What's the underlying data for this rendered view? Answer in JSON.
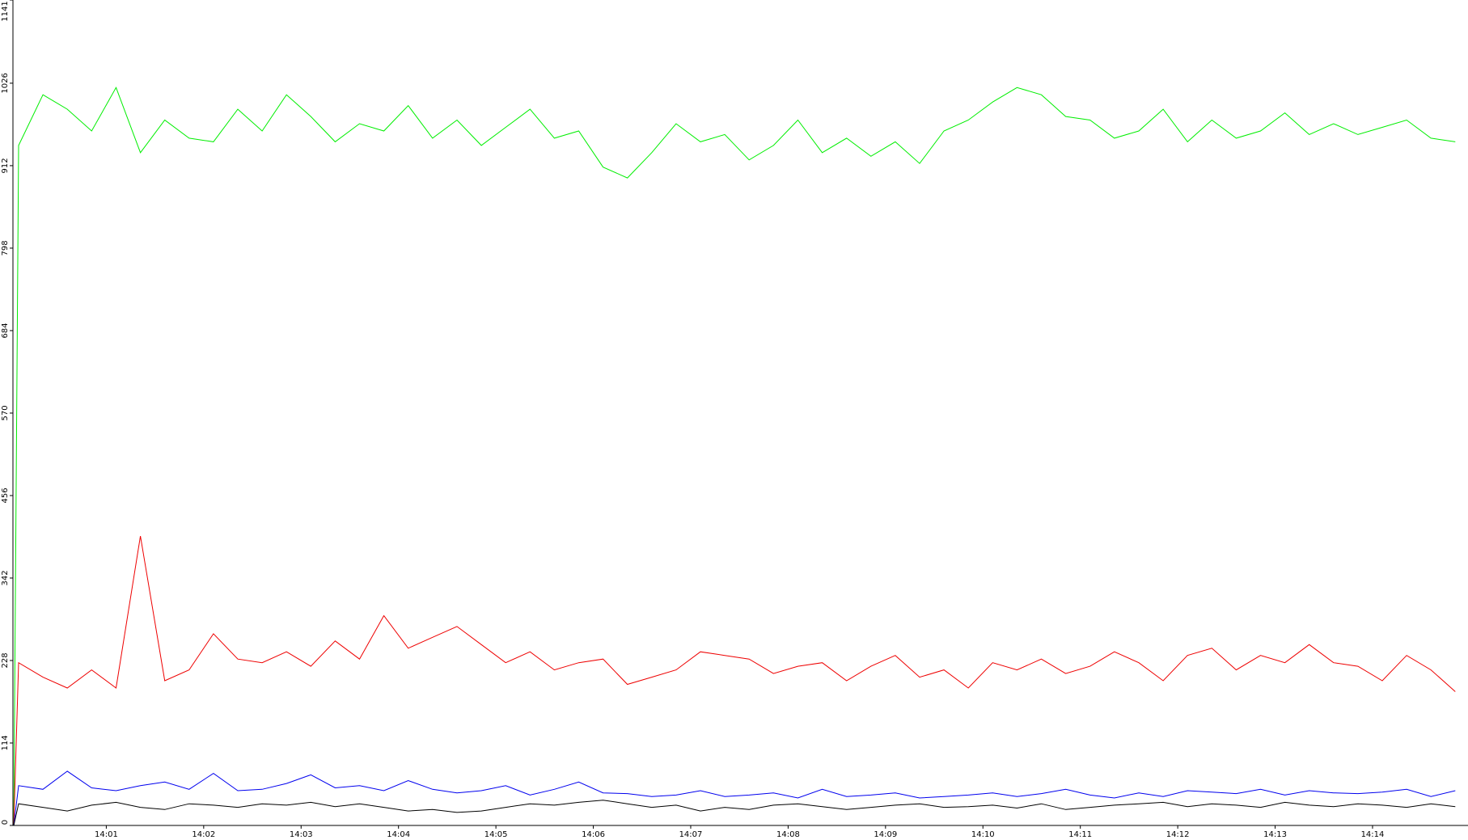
{
  "chart_data": {
    "type": "line",
    "x": [
      0.05,
      0.1,
      0.35,
      0.6,
      0.85,
      1.1,
      1.35,
      1.6,
      1.85,
      2.1,
      2.35,
      2.6,
      2.85,
      3.1,
      3.35,
      3.6,
      3.85,
      4.1,
      4.35,
      4.6,
      4.85,
      5.1,
      5.35,
      5.6,
      5.85,
      6.1,
      6.35,
      6.6,
      6.85,
      7.1,
      7.35,
      7.6,
      7.85,
      8.1,
      8.35,
      8.6,
      8.85,
      9.1,
      9.35,
      9.6,
      9.85,
      10.1,
      10.35,
      10.6,
      10.85,
      11.1,
      11.35,
      11.6,
      11.85,
      12.1,
      12.35,
      12.6,
      12.85,
      13.1,
      13.35,
      13.6,
      13.85,
      14.1,
      14.35,
      14.6,
      14.85
    ],
    "series": [
      {
        "color": "#00ee00",
        "values": [
          0,
          940,
          1010,
          990,
          960,
          1020,
          930,
          975,
          950,
          945,
          990,
          960,
          1010,
          980,
          945,
          970,
          960,
          995,
          950,
          975,
          940,
          965,
          990,
          950,
          960,
          910,
          895,
          930,
          970,
          945,
          955,
          920,
          940,
          975,
          930,
          950,
          925,
          945,
          915,
          960,
          975,
          1000,
          1020,
          1010,
          980,
          975,
          950,
          960,
          990,
          945,
          975,
          950,
          960,
          985,
          955,
          970,
          955,
          965,
          975,
          950,
          945
        ]
      },
      {
        "color": "#ee0000",
        "values": [
          0,
          225,
          205,
          190,
          215,
          190,
          400,
          200,
          215,
          265,
          230,
          225,
          240,
          220,
          255,
          230,
          290,
          245,
          260,
          275,
          250,
          225,
          240,
          215,
          225,
          230,
          195,
          205,
          215,
          240,
          235,
          230,
          210,
          220,
          225,
          200,
          220,
          235,
          205,
          215,
          190,
          225,
          215,
          230,
          210,
          220,
          240,
          225,
          200,
          235,
          245,
          215,
          235,
          225,
          250,
          225,
          220,
          200,
          235,
          215,
          185
        ]
      },
      {
        "color": "#0000ee",
        "values": [
          0,
          55,
          50,
          75,
          52,
          48,
          55,
          60,
          50,
          72,
          48,
          50,
          58,
          70,
          52,
          55,
          48,
          62,
          50,
          45,
          48,
          55,
          42,
          50,
          60,
          45,
          44,
          40,
          42,
          48,
          40,
          42,
          45,
          38,
          50,
          40,
          42,
          45,
          38,
          40,
          42,
          45,
          40,
          44,
          50,
          42,
          38,
          45,
          40,
          48,
          46,
          44,
          50,
          42,
          48,
          45,
          44,
          46,
          50,
          40,
          48
        ]
      },
      {
        "color": "#000000",
        "values": [
          0,
          30,
          25,
          20,
          28,
          32,
          25,
          22,
          30,
          28,
          25,
          30,
          28,
          32,
          26,
          30,
          25,
          20,
          22,
          18,
          20,
          25,
          30,
          28,
          32,
          35,
          30,
          25,
          28,
          20,
          25,
          22,
          28,
          30,
          26,
          22,
          25,
          28,
          30,
          25,
          26,
          28,
          24,
          30,
          22,
          25,
          28,
          30,
          32,
          26,
          30,
          28,
          25,
          32,
          28,
          26,
          30,
          28,
          25,
          30,
          26
        ]
      }
    ],
    "xlim": [
      0.05,
      14.98
    ],
    "xticks": [
      {
        "value": 1,
        "label": "14:01"
      },
      {
        "value": 2,
        "label": "14:02"
      },
      {
        "value": 3,
        "label": "14:03"
      },
      {
        "value": 4,
        "label": "14:04"
      },
      {
        "value": 5,
        "label": "14:05"
      },
      {
        "value": 6,
        "label": "14:06"
      },
      {
        "value": 7,
        "label": "14:07"
      },
      {
        "value": 8,
        "label": "14:08"
      },
      {
        "value": 9,
        "label": "14:09"
      },
      {
        "value": 10,
        "label": "14:10"
      },
      {
        "value": 11,
        "label": "14:11"
      },
      {
        "value": 12,
        "label": "14:12"
      },
      {
        "value": 13,
        "label": "14:13"
      },
      {
        "value": 14,
        "label": "14:14"
      }
    ],
    "ylim": [
      0,
      1141
    ],
    "yticks": [
      0,
      114,
      228,
      342,
      456,
      570,
      684,
      798,
      912,
      1026,
      1141
    ]
  }
}
